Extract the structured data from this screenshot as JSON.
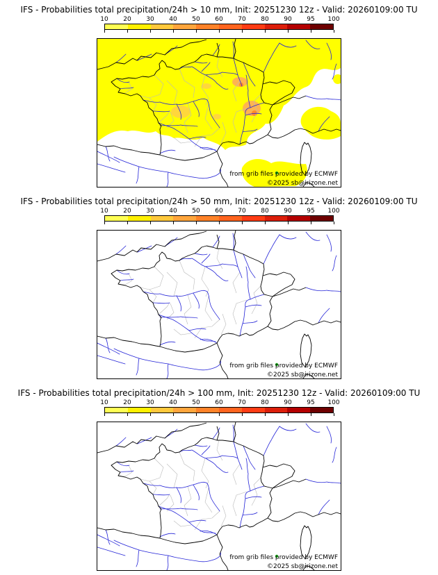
{
  "panels": [
    {
      "title": "IFS - Probabilities total precipitation/24h > 10 mm, Init: 20251230 12z - Valid: 20260109:00 TU",
      "shading": true
    },
    {
      "title": "IFS - Probabilities total precipitation/24h > 50 mm, Init: 20251230 12z - Valid: 20260109:00 TU",
      "shading": false
    },
    {
      "title": "IFS - Probabilities total precipitation/24h > 100 mm, Init: 20251230 12z - Valid: 20260109:00 TU",
      "shading": false
    }
  ],
  "colorbar": {
    "ticks": [
      "10",
      "20",
      "30",
      "40",
      "50",
      "60",
      "70",
      "80",
      "90",
      "95",
      "100"
    ],
    "colors": [
      "#ffff54",
      "#fff000",
      "#ffc83c",
      "#ffa53c",
      "#ff8228",
      "#ff641e",
      "#ff3c14",
      "#dc1e0a",
      "#b40000",
      "#6e0000"
    ]
  },
  "map": {
    "attribution1": "from grib files provided by ECMWF",
    "attribution2": "©2025 sb@irizone.net",
    "river_color": "#2323d7",
    "boundary_color": "#b9b9b9",
    "coast_color": "#000000",
    "overlay_colors": {
      "p10": "#ffff00",
      "p25": "#ffd73c",
      "p30": "#ffb450",
      "p40": "#ff8c28"
    }
  }
}
